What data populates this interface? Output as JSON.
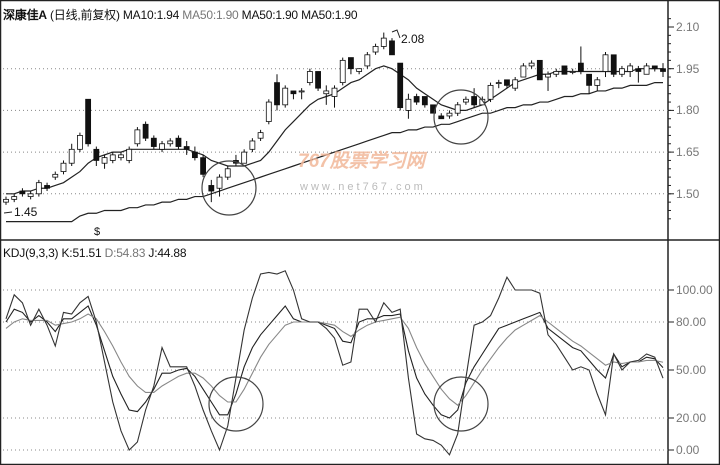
{
  "header": {
    "stock": "深康佳A",
    "period": "(日线,前复权)",
    "ma1": "MA10:1.94",
    "ma2": "MA50:1.90",
    "ma3": "MA50:1.90",
    "ma4": "MA50:1.90"
  },
  "kdj_header": {
    "name": "KDJ(9,3,3)",
    "k": "K:51.51",
    "d": "D:54.83",
    "j": "J:44.88"
  },
  "annotations": {
    "high": "2.08",
    "low": "1.45",
    "marker": "$"
  },
  "watermark": {
    "cn": "767股票学习网",
    "url": "www.net767.com"
  },
  "colors": {
    "line": "#222222",
    "grid": "#888888",
    "circle": "#444444",
    "watermark": "#f2b89a"
  },
  "chart_data": [
    {
      "type": "candlestick",
      "title": "深康佳A (日线,前复权)",
      "y_ticks": [
        2.1,
        1.95,
        1.8,
        1.65,
        1.5
      ],
      "y_tick_labels": [
        "2.10",
        "1.95",
        "1.80",
        "1.65",
        "1.50"
      ],
      "ylim": [
        1.37,
        2.14
      ],
      "grid": "dotted horizontal",
      "candles_ohlc": [
        [
          1.47,
          1.49,
          1.46,
          1.48
        ],
        [
          1.48,
          1.5,
          1.47,
          1.49
        ],
        [
          1.51,
          1.52,
          1.49,
          1.5
        ],
        [
          1.49,
          1.51,
          1.48,
          1.5
        ],
        [
          1.5,
          1.55,
          1.49,
          1.54
        ],
        [
          1.53,
          1.54,
          1.51,
          1.52
        ],
        [
          1.56,
          1.58,
          1.55,
          1.57
        ],
        [
          1.58,
          1.62,
          1.57,
          1.61
        ],
        [
          1.61,
          1.68,
          1.6,
          1.66
        ],
        [
          1.66,
          1.72,
          1.65,
          1.71
        ],
        [
          1.84,
          1.84,
          1.67,
          1.68
        ],
        [
          1.66,
          1.67,
          1.6,
          1.62
        ],
        [
          1.61,
          1.64,
          1.59,
          1.63
        ],
        [
          1.62,
          1.65,
          1.61,
          1.64
        ],
        [
          1.63,
          1.65,
          1.62,
          1.64
        ],
        [
          1.62,
          1.67,
          1.61,
          1.66
        ],
        [
          1.68,
          1.74,
          1.67,
          1.73
        ],
        [
          1.75,
          1.76,
          1.69,
          1.7
        ],
        [
          1.7,
          1.71,
          1.66,
          1.67
        ],
        [
          1.66,
          1.69,
          1.65,
          1.68
        ],
        [
          1.68,
          1.7,
          1.67,
          1.69
        ],
        [
          1.7,
          1.71,
          1.66,
          1.67
        ],
        [
          1.67,
          1.69,
          1.64,
          1.66
        ],
        [
          1.65,
          1.67,
          1.62,
          1.63
        ],
        [
          1.63,
          1.64,
          1.56,
          1.57
        ],
        [
          1.53,
          1.55,
          1.47,
          1.51
        ],
        [
          1.52,
          1.57,
          1.49,
          1.56
        ],
        [
          1.56,
          1.6,
          1.55,
          1.59
        ],
        [
          1.62,
          1.64,
          1.6,
          1.61
        ],
        [
          1.61,
          1.66,
          1.61,
          1.65
        ],
        [
          1.66,
          1.7,
          1.65,
          1.69
        ],
        [
          1.7,
          1.73,
          1.69,
          1.72
        ],
        [
          1.76,
          1.84,
          1.75,
          1.83
        ],
        [
          1.9,
          1.93,
          1.8,
          1.82
        ],
        [
          1.82,
          1.89,
          1.81,
          1.88
        ],
        [
          1.87,
          1.87,
          1.84,
          1.86
        ],
        [
          1.87,
          1.88,
          1.84,
          1.87
        ],
        [
          1.9,
          1.95,
          1.89,
          1.94
        ],
        [
          1.94,
          1.94,
          1.87,
          1.88
        ],
        [
          1.86,
          1.89,
          1.82,
          1.87
        ],
        [
          1.85,
          1.89,
          1.81,
          1.88
        ],
        [
          1.9,
          1.99,
          1.89,
          1.98
        ],
        [
          1.99,
          1.99,
          1.93,
          1.95
        ],
        [
          1.94,
          1.95,
          1.93,
          1.95
        ],
        [
          1.96,
          2.01,
          1.95,
          2.0
        ],
        [
          2.01,
          2.04,
          2.0,
          2.03
        ],
        [
          2.03,
          2.08,
          2.02,
          2.06
        ],
        [
          2.05,
          2.06,
          2.0,
          2.0
        ],
        [
          1.97,
          1.97,
          1.8,
          1.81
        ],
        [
          1.8,
          1.86,
          1.77,
          1.84
        ],
        [
          1.85,
          1.86,
          1.82,
          1.83
        ],
        [
          1.85,
          1.85,
          1.81,
          1.82
        ],
        [
          1.82,
          1.82,
          1.79,
          1.79
        ],
        [
          1.78,
          1.79,
          1.77,
          1.77
        ],
        [
          1.78,
          1.8,
          1.77,
          1.79
        ],
        [
          1.79,
          1.83,
          1.78,
          1.82
        ],
        [
          1.83,
          1.85,
          1.82,
          1.84
        ],
        [
          1.85,
          1.88,
          1.81,
          1.82
        ],
        [
          1.82,
          1.85,
          1.82,
          1.84
        ],
        [
          1.84,
          1.9,
          1.83,
          1.89
        ],
        [
          1.9,
          1.91,
          1.88,
          1.9
        ],
        [
          1.91,
          1.91,
          1.88,
          1.89
        ],
        [
          1.88,
          1.92,
          1.87,
          1.91
        ],
        [
          1.92,
          1.97,
          1.92,
          1.96
        ],
        [
          1.96,
          1.98,
          1.95,
          1.97
        ],
        [
          1.98,
          1.98,
          1.91,
          1.91
        ],
        [
          1.92,
          1.94,
          1.87,
          1.93
        ],
        [
          1.93,
          1.95,
          1.92,
          1.94
        ],
        [
          1.96,
          1.96,
          1.93,
          1.93
        ],
        [
          1.94,
          1.95,
          1.93,
          1.94
        ],
        [
          1.97,
          2.03,
          1.93,
          1.94
        ],
        [
          1.93,
          1.93,
          1.86,
          1.89
        ],
        [
          1.89,
          1.92,
          1.87,
          1.91
        ],
        [
          1.94,
          2.01,
          1.92,
          2.0
        ],
        [
          2.0,
          2.0,
          1.92,
          1.93
        ],
        [
          1.93,
          1.96,
          1.92,
          1.95
        ],
        [
          1.94,
          1.97,
          1.92,
          1.96
        ],
        [
          1.95,
          1.96,
          1.9,
          1.94
        ],
        [
          1.93,
          1.97,
          1.93,
          1.96
        ],
        [
          1.96,
          1.96,
          1.94,
          1.95
        ],
        [
          1.95,
          1.97,
          1.92,
          1.94
        ]
      ],
      "series": [
        {
          "name": "MA10",
          "values": [
            1.5,
            1.5,
            1.51,
            1.51,
            1.52,
            1.52,
            1.53,
            1.54,
            1.56,
            1.58,
            1.61,
            1.63,
            1.64,
            1.65,
            1.65,
            1.66,
            1.66,
            1.66,
            1.66,
            1.66,
            1.66,
            1.66,
            1.66,
            1.65,
            1.64,
            1.62,
            1.61,
            1.6,
            1.6,
            1.6,
            1.61,
            1.62,
            1.65,
            1.69,
            1.73,
            1.76,
            1.79,
            1.82,
            1.84,
            1.85,
            1.86,
            1.88,
            1.9,
            1.91,
            1.93,
            1.95,
            1.96,
            1.95,
            1.93,
            1.91,
            1.88,
            1.86,
            1.84,
            1.82,
            1.81,
            1.8,
            1.8,
            1.81,
            1.82,
            1.84,
            1.86,
            1.88,
            1.9,
            1.91,
            1.92,
            1.93,
            1.93,
            1.94,
            1.94,
            1.94,
            1.94,
            1.94,
            1.94,
            1.94,
            1.94,
            1.94,
            1.94,
            1.95,
            1.95,
            1.95,
            1.95
          ]
        },
        {
          "name": "MA50",
          "values": [
            1.4,
            1.4,
            1.4,
            1.4,
            1.4,
            1.4,
            1.4,
            1.4,
            1.4,
            1.42,
            1.43,
            1.43,
            1.44,
            1.44,
            1.44,
            1.45,
            1.45,
            1.46,
            1.46,
            1.47,
            1.47,
            1.48,
            1.48,
            1.49,
            1.49,
            1.5,
            1.51,
            1.52,
            1.53,
            1.54,
            1.55,
            1.56,
            1.57,
            1.58,
            1.59,
            1.6,
            1.61,
            1.62,
            1.63,
            1.64,
            1.65,
            1.66,
            1.67,
            1.68,
            1.69,
            1.7,
            1.71,
            1.72,
            1.72,
            1.73,
            1.73,
            1.74,
            1.74,
            1.75,
            1.75,
            1.76,
            1.77,
            1.78,
            1.79,
            1.79,
            1.8,
            1.81,
            1.81,
            1.82,
            1.82,
            1.83,
            1.83,
            1.84,
            1.85,
            1.85,
            1.86,
            1.86,
            1.87,
            1.87,
            1.88,
            1.88,
            1.89,
            1.89,
            1.89,
            1.9,
            1.9
          ]
        }
      ]
    },
    {
      "type": "line",
      "title": "KDJ(9,3,3)",
      "y_ticks": [
        100,
        80,
        50,
        20,
        0
      ],
      "y_tick_labels": [
        "100.00",
        "80.00",
        "50.00",
        "20.00",
        "0.00"
      ],
      "ylim": [
        -5,
        115
      ],
      "grid": "dotted horizontal",
      "series": [
        {
          "name": "K",
          "values": [
            80,
            88,
            86,
            80,
            84,
            80,
            74,
            82,
            82,
            86,
            90,
            78,
            62,
            46,
            35,
            25,
            24,
            30,
            38,
            48,
            48,
            50,
            51,
            46,
            38,
            30,
            22,
            22,
            35,
            52,
            64,
            72,
            78,
            84,
            90,
            82,
            80,
            80,
            80,
            78,
            76,
            68,
            67,
            80,
            82,
            82,
            84,
            84,
            85,
            62,
            45,
            35,
            28,
            22,
            20,
            25,
            42,
            52,
            60,
            68,
            76,
            78,
            80,
            82,
            84,
            86,
            76,
            72,
            68,
            64,
            62,
            56,
            50,
            45,
            60,
            52,
            55,
            55,
            58,
            57,
            51.51
          ]
        },
        {
          "name": "D",
          "values": [
            76,
            80,
            82,
            81,
            81,
            81,
            78,
            79,
            80,
            82,
            85,
            82,
            74,
            65,
            55,
            46,
            40,
            36,
            36,
            40,
            43,
            46,
            48,
            48,
            45,
            40,
            34,
            30,
            30,
            38,
            48,
            58,
            66,
            72,
            78,
            80,
            80,
            80,
            80,
            79,
            78,
            74,
            71,
            75,
            78,
            80,
            81,
            82,
            83,
            76,
            64,
            54,
            46,
            38,
            32,
            28,
            34,
            42,
            50,
            57,
            64,
            70,
            75,
            78,
            81,
            84,
            80,
            76,
            72,
            68,
            65,
            61,
            57,
            53,
            55,
            54,
            55,
            55,
            56,
            56,
            54.83
          ]
        },
        {
          "name": "J",
          "values": [
            82,
            97,
            92,
            78,
            88,
            78,
            65,
            86,
            85,
            92,
            96,
            80,
            55,
            30,
            12,
            0,
            5,
            25,
            40,
            64,
            52,
            52,
            52,
            40,
            25,
            12,
            0,
            15,
            45,
            75,
            95,
            110,
            111,
            110,
            112,
            100,
            82,
            80,
            80,
            76,
            70,
            53,
            55,
            88,
            88,
            80,
            92,
            86,
            88,
            45,
            10,
            7,
            6,
            3,
            -3,
            10,
            45,
            78,
            80,
            84,
            95,
            108,
            100,
            100,
            100,
            98,
            72,
            66,
            58,
            50,
            52,
            50,
            35,
            22,
            60,
            50,
            55,
            56,
            60,
            58,
            44.88
          ]
        }
      ]
    }
  ]
}
